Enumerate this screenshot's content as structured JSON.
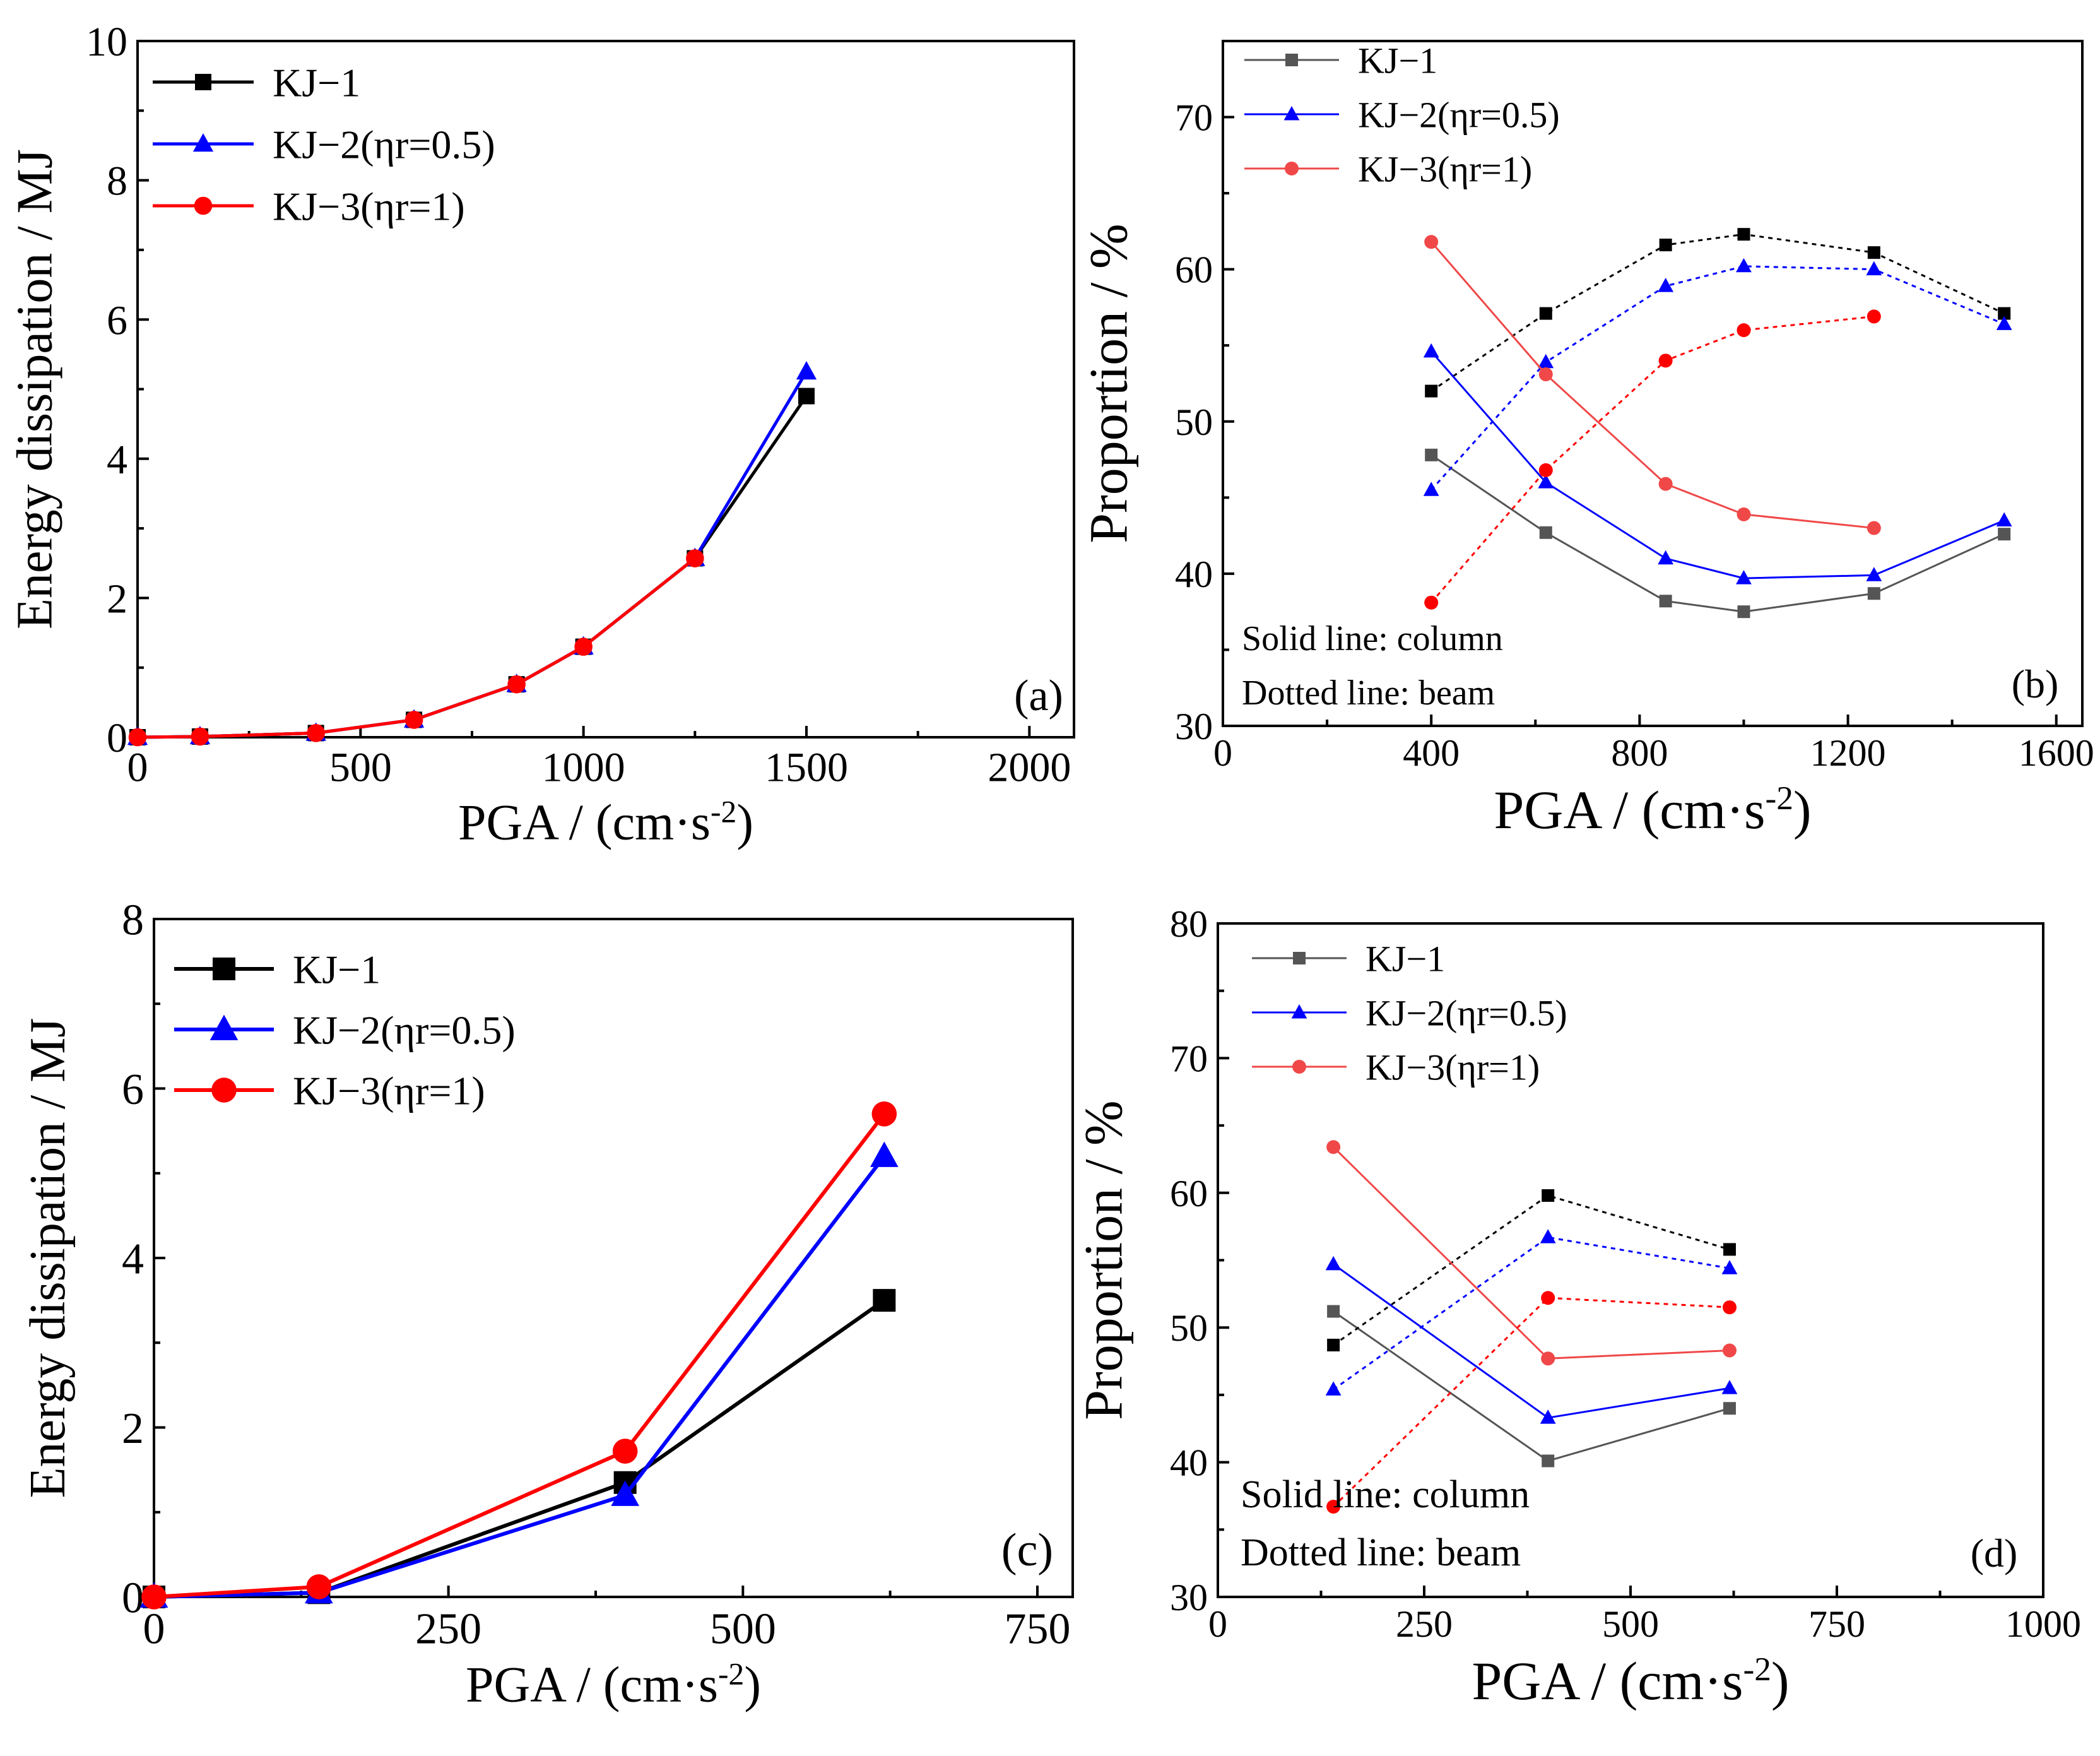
{
  "chart_data": [
    {
      "panel": "a",
      "type": "line",
      "panel_label": "(a)",
      "xlabel": "PGA / (cm·s",
      "xlabel_sup": "-2",
      "xlabel_close": ")",
      "ylabel": "Energy dissipation / MJ",
      "xlim": [
        0,
        2100
      ],
      "ylim": [
        0,
        10
      ],
      "xticks": [
        0,
        500,
        1000,
        1500,
        2000
      ],
      "yticks": [
        0,
        2,
        4,
        6,
        8,
        10
      ],
      "legend_position": "top-left",
      "series": [
        {
          "name": "KJ−1",
          "color": "#000000",
          "marker": "square",
          "dashed": false,
          "x": [
            0,
            140,
            400,
            620,
            850,
            1000,
            1250,
            1500
          ],
          "y": [
            0,
            0.01,
            0.06,
            0.25,
            0.76,
            1.3,
            2.57,
            4.9
          ]
        },
        {
          "name": "KJ−2(ηr=0.5)",
          "color": "#0000ff",
          "marker": "triangle",
          "dashed": false,
          "x": [
            0,
            140,
            400,
            620,
            850,
            1000,
            1250,
            1500
          ],
          "y": [
            0,
            0.01,
            0.06,
            0.25,
            0.76,
            1.3,
            2.57,
            5.25
          ]
        },
        {
          "name": "KJ−3(ηr=1)",
          "color": "#ff0000",
          "marker": "circle",
          "dashed": false,
          "x": [
            0,
            140,
            400,
            620,
            850,
            1000,
            1250
          ],
          "y": [
            0,
            0.01,
            0.06,
            0.25,
            0.76,
            1.3,
            2.57
          ]
        }
      ]
    },
    {
      "panel": "b",
      "type": "line",
      "panel_label": "(b)",
      "xlabel": "PGA / (cm·s",
      "xlabel_sup": "-2",
      "xlabel_close": ")",
      "ylabel": "Proportion / %",
      "xlim": [
        0,
        1650
      ],
      "ylim": [
        30,
        75
      ],
      "xticks": [
        0,
        400,
        800,
        1200,
        1600
      ],
      "yticks": [
        30,
        40,
        50,
        60,
        70
      ],
      "legend_position": "top-left",
      "annotations": [
        "Solid line: column",
        "Dotted line: beam"
      ],
      "legend": [
        {
          "name": "KJ−1",
          "color": "#555555",
          "marker": "square"
        },
        {
          "name": "KJ−2(ηr=0.5)",
          "color": "#0000ff",
          "marker": "triangle"
        },
        {
          "name": "KJ−3(ηr=1)",
          "color": "#f04848",
          "marker": "circle"
        }
      ],
      "series": [
        {
          "name": "KJ−1 column",
          "color": "#555555",
          "marker": "square",
          "dashed": false,
          "x": [
            400,
            620,
            850,
            1000,
            1250,
            1500
          ],
          "y": [
            47.8,
            42.7,
            38.2,
            37.5,
            38.7,
            42.6
          ]
        },
        {
          "name": "KJ−1 beam",
          "color": "#000000",
          "marker": "square",
          "dashed": true,
          "x": [
            400,
            620,
            850,
            1000,
            1250,
            1500
          ],
          "y": [
            52,
            57.1,
            61.6,
            62.3,
            61.1,
            57.1
          ]
        },
        {
          "name": "KJ−2 column",
          "color": "#0000ff",
          "marker": "triangle",
          "dashed": false,
          "x": [
            400,
            620,
            850,
            1000,
            1250,
            1500
          ],
          "y": [
            54.6,
            46,
            41,
            39.7,
            39.9,
            43.5
          ]
        },
        {
          "name": "KJ−2 beam",
          "color": "#0000ff",
          "marker": "triangle",
          "dashed": true,
          "x": [
            400,
            620,
            850,
            1000,
            1250,
            1500
          ],
          "y": [
            45.5,
            53.9,
            58.9,
            60.2,
            60,
            56.4
          ]
        },
        {
          "name": "KJ−3 column",
          "color": "#f04848",
          "marker": "circle",
          "dashed": false,
          "x": [
            400,
            620,
            850,
            1000,
            1250
          ],
          "y": [
            61.8,
            53.1,
            45.9,
            43.9,
            43
          ]
        },
        {
          "name": "KJ−3 beam",
          "color": "#ff0000",
          "marker": "circle",
          "dashed": true,
          "x": [
            400,
            620,
            850,
            1000,
            1250
          ],
          "y": [
            38.1,
            46.8,
            54,
            56,
            56.9
          ]
        }
      ]
    },
    {
      "panel": "c",
      "type": "line",
      "panel_label": "(c)",
      "xlabel": "PGA / (cm·s",
      "xlabel_sup": "-2",
      "xlabel_close": ")",
      "ylabel": "Energy dissipation / MJ",
      "xlim": [
        0,
        780
      ],
      "ylim": [
        0,
        8
      ],
      "xticks": [
        0,
        250,
        500,
        750
      ],
      "yticks": [
        0,
        2,
        4,
        6,
        8
      ],
      "legend_position": "top-left",
      "series": [
        {
          "name": "KJ−1",
          "color": "#000000",
          "marker": "square",
          "dashed": false,
          "x": [
            0,
            140,
            400,
            620
          ],
          "y": [
            0,
            0.05,
            1.35,
            3.5
          ]
        },
        {
          "name": "KJ−2(ηr=0.5)",
          "color": "#0000ff",
          "marker": "triangle",
          "dashed": false,
          "x": [
            0,
            140,
            400,
            620
          ],
          "y": [
            0,
            0.05,
            1.2,
            5.2
          ]
        },
        {
          "name": "KJ−3(ηr=1)",
          "color": "#ff0000",
          "marker": "circle",
          "dashed": false,
          "x": [
            0,
            140,
            400,
            620
          ],
          "y": [
            0,
            0.12,
            1.72,
            5.7
          ]
        }
      ]
    },
    {
      "panel": "d",
      "type": "line",
      "panel_label": "(d)",
      "xlabel": "PGA / (cm·s",
      "xlabel_sup": "-2",
      "xlabel_close": ")",
      "ylabel": "Proportion / %",
      "xlim": [
        0,
        1000
      ],
      "ylim": [
        30,
        80
      ],
      "xticks": [
        0,
        250,
        500,
        750,
        1000
      ],
      "yticks": [
        30,
        40,
        50,
        60,
        70,
        80
      ],
      "legend_position": "top-left",
      "annotations": [
        "Solid line: column",
        "Dotted line: beam"
      ],
      "legend": [
        {
          "name": "KJ−1",
          "color": "#555555",
          "marker": "square"
        },
        {
          "name": "KJ−2(ηr=0.5)",
          "color": "#0000ff",
          "marker": "triangle"
        },
        {
          "name": "KJ−3(ηr=1)",
          "color": "#f04848",
          "marker": "circle"
        }
      ],
      "series": [
        {
          "name": "KJ−1 column",
          "color": "#555555",
          "marker": "square",
          "dashed": false,
          "x": [
            140,
            400,
            620
          ],
          "y": [
            51.2,
            40.1,
            44
          ]
        },
        {
          "name": "KJ−1 beam",
          "color": "#000000",
          "marker": "square",
          "dashed": true,
          "x": [
            140,
            400,
            620
          ],
          "y": [
            48.7,
            59.8,
            55.8
          ]
        },
        {
          "name": "KJ−2 column",
          "color": "#0000ff",
          "marker": "triangle",
          "dashed": false,
          "x": [
            140,
            400,
            620
          ],
          "y": [
            54.7,
            43.3,
            45.5
          ]
        },
        {
          "name": "KJ−2 beam",
          "color": "#0000ff",
          "marker": "triangle",
          "dashed": true,
          "x": [
            140,
            400,
            620
          ],
          "y": [
            45.4,
            56.7,
            54.4
          ]
        },
        {
          "name": "KJ−3 column",
          "color": "#f04848",
          "marker": "circle",
          "dashed": false,
          "x": [
            140,
            400,
            620
          ],
          "y": [
            63.4,
            47.7,
            48.3
          ]
        },
        {
          "name": "KJ−3 beam",
          "color": "#ff0000",
          "marker": "circle",
          "dashed": true,
          "x": [
            140,
            400,
            620
          ],
          "y": [
            36.7,
            52.2,
            51.5
          ]
        }
      ]
    }
  ]
}
